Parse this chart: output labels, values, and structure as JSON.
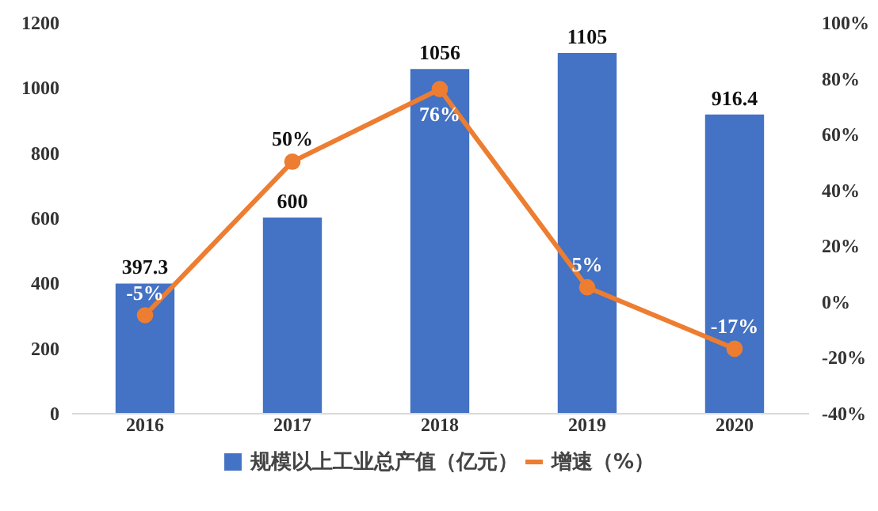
{
  "chart_data": {
    "type": "bar",
    "categories": [
      "2016",
      "2017",
      "2018",
      "2019",
      "2020"
    ],
    "series": [
      {
        "name": "规模以上工业总产值（亿元）",
        "color": "#4472c4",
        "values": [
          397.3,
          600,
          1056,
          1105,
          916.4
        ],
        "value_labels": [
          "397.3",
          "600",
          "1056",
          "1105",
          "916.4"
        ]
      },
      {
        "name": "增速（%）",
        "type": "line",
        "axis": "y2",
        "color": "#ed7d31",
        "values": [
          -5,
          50,
          76,
          5,
          -17
        ],
        "value_labels": [
          "-5%",
          "50%",
          "76%",
          "5%",
          "-17%"
        ]
      }
    ],
    "ylim": [
      0,
      1200
    ],
    "yticks": [
      0,
      200,
      400,
      600,
      800,
      1000,
      1200
    ],
    "y2lim": [
      -40,
      100
    ],
    "y2ticks": [
      {
        "value": -40,
        "label": "-40%"
      },
      {
        "value": -20,
        "label": "-20%"
      },
      {
        "value": 0,
        "label": "0%"
      },
      {
        "value": 20,
        "label": "20%"
      },
      {
        "value": 40,
        "label": "40%"
      },
      {
        "value": 60,
        "label": "60%"
      },
      {
        "value": 80,
        "label": "80%"
      },
      {
        "value": 100,
        "label": "100%"
      }
    ],
    "marker": "circle",
    "legend": "bottom",
    "grid": false
  }
}
